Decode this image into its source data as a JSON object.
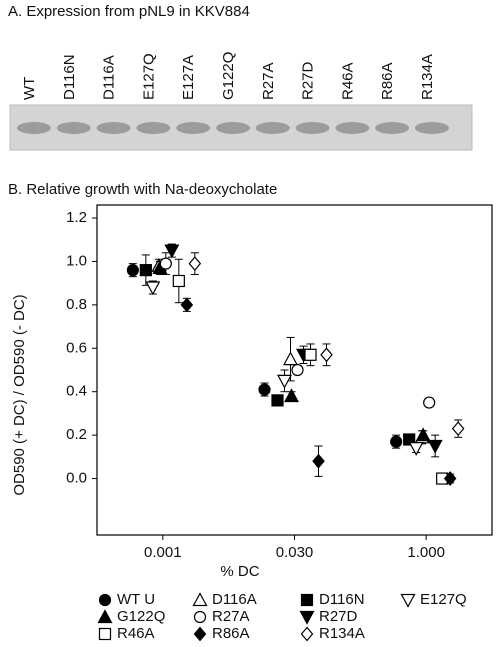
{
  "panel_a": {
    "title": "A. Expression from pNL9 in KKV884",
    "lanes": [
      "WT",
      "D116N",
      "D116A",
      "E127Q",
      "E127A",
      "G122Q",
      "R27A",
      "R27D",
      "R46A",
      "R86A",
      "R134A"
    ]
  },
  "chart_data": {
    "type": "scatter",
    "title": "B. Relative growth with Na-deoxycholate",
    "x_label": "% DC",
    "y_label": "OD590 (+ DC) / OD590 (- DC)",
    "categories": [
      "0.001",
      "0.030",
      "1.000"
    ],
    "ylim": [
      -0.26,
      1.26
    ],
    "yticks": [
      {
        "value": 0,
        "label": "0.0"
      },
      0.2,
      0.4,
      0.6,
      0.8,
      {
        "value": 1,
        "label": "1.0"
      },
      1.2
    ],
    "series": [
      {
        "name": "WT U",
        "marker": "circle",
        "filled": true,
        "color": "#000000",
        "values": [
          0.96,
          0.41,
          0.17
        ],
        "errors": [
          0.03,
          0.03,
          0.03
        ]
      },
      {
        "name": "D116A",
        "marker": "triangle-up",
        "filled": false,
        "color": "#000000",
        "values": [
          0.98,
          0.55,
          0.19
        ],
        "errors": [
          0.03,
          0.1,
          0.03
        ]
      },
      {
        "name": "D116N",
        "marker": "square",
        "filled": true,
        "color": "#000000",
        "values": [
          0.96,
          0.36,
          0.18
        ],
        "errors": [
          0.07,
          0.02,
          0.02
        ]
      },
      {
        "name": "E127Q",
        "marker": "triangle-down",
        "filled": false,
        "color": "#000000",
        "values": [
          0.88,
          0.45,
          0.14
        ],
        "errors": [
          0.03,
          0.05,
          0.02
        ]
      },
      {
        "name": "G122Q",
        "marker": "triangle-up",
        "filled": true,
        "color": "#000000",
        "values": [
          0.97,
          0.38,
          0.2
        ],
        "errors": [
          0.03,
          0.02,
          0.02
        ]
      },
      {
        "name": "R27A",
        "marker": "circle",
        "filled": false,
        "color": "#000000",
        "values": [
          0.99,
          0.5,
          0.35
        ],
        "errors": [
          0.05,
          0.02,
          0.02
        ]
      },
      {
        "name": "R27D",
        "marker": "triangle-down",
        "filled": true,
        "color": "#000000",
        "values": [
          1.05,
          0.57,
          0.15
        ],
        "errors": [
          0.03,
          0.04,
          0.05
        ]
      },
      {
        "name": "R46A",
        "marker": "square",
        "filled": false,
        "color": "#000000",
        "values": [
          0.91,
          0.57,
          0.0
        ],
        "errors": [
          0.1,
          0.05,
          0.02
        ]
      },
      {
        "name": "R86A",
        "marker": "diamond",
        "filled": true,
        "color": "#000000",
        "values": [
          0.8,
          0.08,
          0.0
        ],
        "errors": [
          0.03,
          0.07,
          0.02
        ]
      },
      {
        "name": "R134A",
        "marker": "diamond",
        "filled": false,
        "color": "#000000",
        "values": [
          0.99,
          0.57,
          0.23
        ],
        "errors": [
          0.05,
          0.05,
          0.04
        ]
      }
    ]
  }
}
